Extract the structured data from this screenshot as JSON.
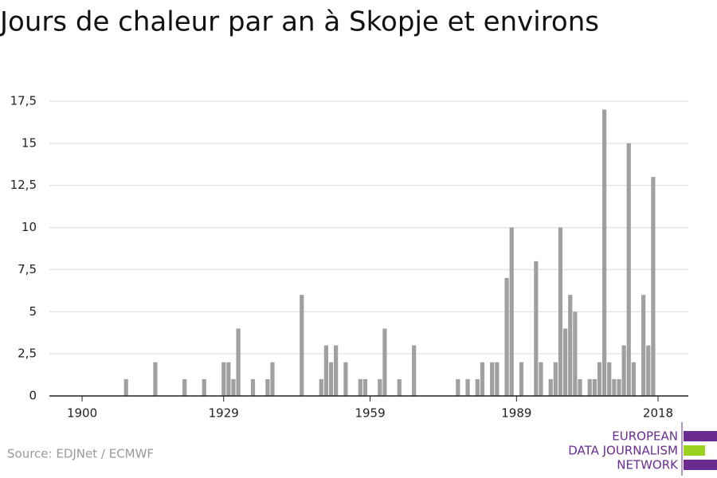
{
  "chart_data": {
    "type": "bar",
    "title": "Jours de chaleur par an à Skopje et environs",
    "source": "Source: EDJNet / ECMWF",
    "logo": [
      "EUROPEAN",
      "DATA JOURNALISM",
      "NETWORK"
    ],
    "color": "#a0a0a0",
    "x": [
      1909,
      1915,
      1921,
      1925,
      1929,
      1930,
      1931,
      1932,
      1935,
      1938,
      1939,
      1945,
      1949,
      1950,
      1951,
      1952,
      1954,
      1957,
      1958,
      1961,
      1962,
      1965,
      1968,
      1977,
      1979,
      1981,
      1982,
      1984,
      1985,
      1987,
      1988,
      1990,
      1993,
      1994,
      1996,
      1997,
      1998,
      1999,
      2000,
      2001,
      2002,
      2004,
      2005,
      2006,
      2007,
      2008,
      2009,
      2010,
      2011,
      2012,
      2013,
      2015,
      2016,
      2017
    ],
    "values": [
      1,
      2,
      1,
      1,
      2,
      2,
      1,
      4,
      1,
      1,
      2,
      6,
      1,
      3,
      2,
      3,
      2,
      1,
      1,
      1,
      4,
      1,
      3,
      1,
      1,
      1,
      2,
      2,
      2,
      7,
      10,
      2,
      8,
      2,
      1,
      2,
      10,
      4,
      6,
      5,
      1,
      1,
      1,
      2,
      17,
      2,
      1,
      1,
      3,
      15,
      2,
      6,
      3,
      13
    ],
    "xlim": [
      1893.3,
      2024.2
    ],
    "xticks": [
      1900,
      1929,
      1959,
      1989,
      2018
    ],
    "ylim": [
      0,
      17.5
    ],
    "yticks": [
      0,
      {
        "value": 2.5,
        "label": "2,5"
      },
      5,
      {
        "value": 7.5,
        "label": "7,5"
      },
      10,
      {
        "value": 12.5,
        "label": "12,5"
      },
      15,
      {
        "value": 17.5,
        "label": "17,5"
      }
    ],
    "grid": true
  }
}
